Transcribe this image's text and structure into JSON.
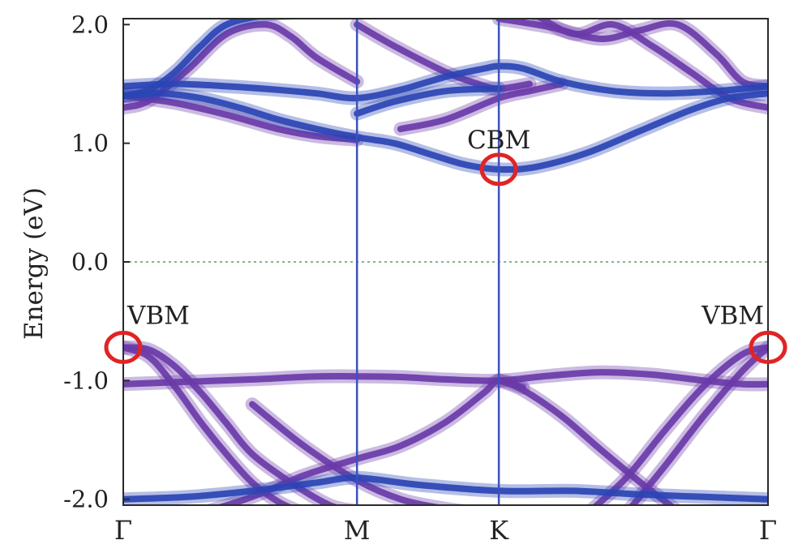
{
  "chart_data": {
    "type": "line",
    "title": "",
    "xlabel": "",
    "ylabel": "Energy (eV)",
    "ylim": [
      -2.05,
      2.05
    ],
    "yticks": [
      {
        "value": 2.0,
        "label": "2.0"
      },
      {
        "value": 1.0,
        "label": "1.0"
      },
      {
        "value": 0.0,
        "label": "0.0"
      },
      {
        "value": -1.0,
        "label": "-1.0"
      },
      {
        "value": -2.0,
        "label": "-2.0"
      }
    ],
    "kpoints": [
      {
        "label": "Γ",
        "position": 0.0
      },
      {
        "label": "M",
        "position": 0.3625
      },
      {
        "label": "K",
        "position": 0.5825
      },
      {
        "label": "Γ",
        "position": 1.0
      }
    ],
    "fermi_level": 0.0,
    "colors": {
      "purple_band": "#6a3aa8",
      "blue_band": "#2b44b4",
      "kpoint_line": "#3b52bb",
      "fermi": "#55a055",
      "marker": "#e02424"
    },
    "bands": [
      {
        "color": "purple",
        "k": [
          0,
          0.04,
          0.08,
          0.12,
          0.16,
          0.2,
          0.26,
          0.32,
          0.3625
        ],
        "e": [
          -0.72,
          -0.74,
          -0.88,
          -1.1,
          -1.36,
          -1.62,
          -1.86,
          -2.05,
          -2.1
        ]
      },
      {
        "color": "purple",
        "k": [
          0,
          0.04,
          0.08,
          0.12,
          0.16,
          0.2,
          0.24,
          0.28
        ],
        "e": [
          -0.72,
          -0.8,
          -1.05,
          -1.35,
          -1.62,
          -1.86,
          -2.02,
          -2.12
        ]
      },
      {
        "color": "purple",
        "k": [
          0,
          0.1,
          0.2,
          0.3,
          0.3625,
          0.43,
          0.5,
          0.5825,
          0.66,
          0.74,
          0.82,
          0.9,
          0.96,
          1.0
        ],
        "e": [
          -1.03,
          -1.01,
          -0.99,
          -0.965,
          -0.965,
          -0.97,
          -0.99,
          -1.0,
          -0.96,
          -0.93,
          -0.95,
          -1.0,
          -1.03,
          -1.03
        ]
      },
      {
        "color": "purple",
        "k": [
          0.12,
          0.2,
          0.28,
          0.3625,
          0.43,
          0.5,
          0.56,
          0.5825,
          0.62
        ],
        "e": [
          -2.12,
          -1.98,
          -1.8,
          -1.66,
          -1.55,
          -1.35,
          -1.1,
          -1.0,
          -1.06
        ]
      },
      {
        "color": "purple",
        "k": [
          0.2,
          0.28,
          0.3625,
          0.43,
          0.5,
          0.56
        ],
        "e": [
          -1.2,
          -1.55,
          -1.84,
          -2.0,
          -2.08,
          -2.12
        ]
      },
      {
        "color": "purple",
        "k": [
          0.5825,
          0.62,
          0.68,
          0.74,
          0.8,
          0.86
        ],
        "e": [
          -1.0,
          -1.08,
          -1.3,
          -1.58,
          -1.85,
          -2.1
        ]
      },
      {
        "color": "purple",
        "k": [
          0.72,
          0.78,
          0.84,
          0.9,
          0.96,
          1.0
        ],
        "e": [
          -2.12,
          -1.82,
          -1.42,
          -1.05,
          -0.78,
          -0.72
        ]
      },
      {
        "color": "purple",
        "k": [
          0.78,
          0.84,
          0.9,
          0.96,
          1.0
        ],
        "e": [
          -2.12,
          -1.72,
          -1.3,
          -0.92,
          -0.72
        ]
      },
      {
        "color": "purple",
        "k": [
          0,
          0.04,
          0.1,
          0.16,
          0.22,
          0.26,
          0.3,
          0.3625
        ],
        "e": [
          1.3,
          1.36,
          1.62,
          1.92,
          2.0,
          1.9,
          1.72,
          1.52
        ]
      },
      {
        "color": "purple",
        "k": [
          0.3625,
          0.42,
          0.5,
          0.55,
          0.5825,
          0.63
        ],
        "e": [
          2.0,
          1.82,
          1.6,
          1.5,
          1.46,
          1.5
        ]
      },
      {
        "color": "purple",
        "k": [
          0.43,
          0.5,
          0.5825,
          0.63,
          0.68
        ],
        "e": [
          1.12,
          1.2,
          1.38,
          1.44,
          1.5
        ]
      },
      {
        "color": "purple",
        "k": [
          0.5825,
          0.66,
          0.74,
          0.8,
          0.86,
          0.92,
          0.96,
          1.0
        ],
        "e": [
          2.05,
          1.98,
          1.88,
          1.95,
          2.0,
          1.75,
          1.52,
          1.48
        ]
      },
      {
        "color": "purple",
        "k": [
          0.64,
          0.7,
          0.76,
          0.82,
          0.88,
          0.94,
          1.0
        ],
        "e": [
          2.08,
          1.92,
          2.0,
          1.82,
          1.6,
          1.38,
          1.3
        ]
      },
      {
        "color": "purple",
        "k": [
          0,
          0.08,
          0.16,
          0.24,
          0.3,
          0.3625
        ],
        "e": [
          1.4,
          1.34,
          1.24,
          1.12,
          1.06,
          1.03
        ]
      },
      {
        "color": "blue",
        "k": [
          0,
          0.08,
          0.16,
          0.24,
          0.3,
          0.3625,
          0.43,
          0.5,
          0.56,
          0.5825,
          0.62,
          0.68,
          0.76,
          0.84,
          0.92,
          1.0
        ],
        "e": [
          1.48,
          1.5,
          1.48,
          1.45,
          1.42,
          1.38,
          1.45,
          1.56,
          1.63,
          1.65,
          1.63,
          1.52,
          1.44,
          1.42,
          1.44,
          1.48
        ]
      },
      {
        "color": "blue",
        "k": [
          0,
          0.06,
          0.12,
          0.18,
          0.24,
          0.3,
          0.3625,
          0.42,
          0.48,
          0.53,
          0.5825,
          0.64,
          0.72,
          0.8,
          0.88,
          0.94,
          1.0
        ],
        "e": [
          1.4,
          1.42,
          1.38,
          1.3,
          1.2,
          1.12,
          1.05,
          1.0,
          0.9,
          0.82,
          0.78,
          0.8,
          0.92,
          1.1,
          1.28,
          1.38,
          1.42
        ]
      },
      {
        "color": "blue",
        "k": [
          0.3625,
          0.42,
          0.5,
          0.5825
        ],
        "e": [
          1.25,
          1.35,
          1.44,
          1.46
        ]
      },
      {
        "color": "blue",
        "k": [
          0,
          0.04,
          0.08,
          0.12,
          0.16,
          0.22,
          0.26
        ],
        "e": [
          1.4,
          1.45,
          1.6,
          1.82,
          2.0,
          2.08,
          2.1
        ]
      },
      {
        "color": "blue",
        "k": [
          0,
          0.1,
          0.2,
          0.3,
          0.3625,
          0.46,
          0.5825,
          0.7,
          0.8,
          0.9,
          1.0
        ],
        "e": [
          -2.0,
          -1.98,
          -1.93,
          -1.86,
          -1.82,
          -1.88,
          -1.93,
          -1.93,
          -1.96,
          -1.98,
          -2.0
        ]
      }
    ],
    "annotations": [
      {
        "text": "CBM",
        "k": 0.5825,
        "e": 0.78,
        "label_anchor": "above"
      },
      {
        "text": "VBM",
        "k": 0.0,
        "e": -0.72,
        "label_anchor": "above-right"
      },
      {
        "text": "VBM",
        "k": 1.0,
        "e": -0.72,
        "label_anchor": "above-left"
      }
    ]
  }
}
